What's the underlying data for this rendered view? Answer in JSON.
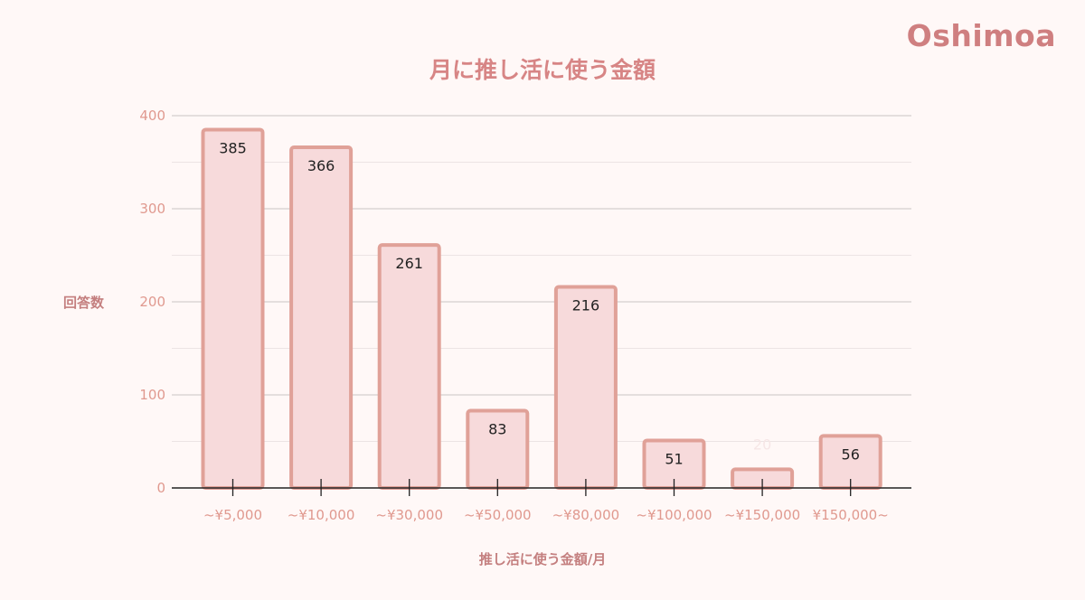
{
  "brand": "Oshimoa",
  "chart_data": {
    "type": "bar",
    "title": "月に推し活に使う金額",
    "xlabel": "推し活に使う金額/月",
    "ylabel": "回答数",
    "categories": [
      "~¥5,000",
      "~¥10,000",
      "~¥30,000",
      "~¥50,000",
      "~¥80,000",
      "~¥100,000",
      "~¥150,000",
      "¥150,000~"
    ],
    "values": [
      385,
      366,
      261,
      83,
      216,
      51,
      20,
      56
    ],
    "ylim": [
      0,
      400
    ],
    "yticks": [
      0,
      100,
      200,
      300,
      400
    ],
    "grid": true,
    "colors": {
      "bar_fill": "#f7dadb",
      "bar_stroke": "#e0a198",
      "grid_major": "#c9c3c3",
      "grid_minor": "#ece4e4",
      "axis": "#222222",
      "label_faded": "#f6e6e6"
    }
  }
}
